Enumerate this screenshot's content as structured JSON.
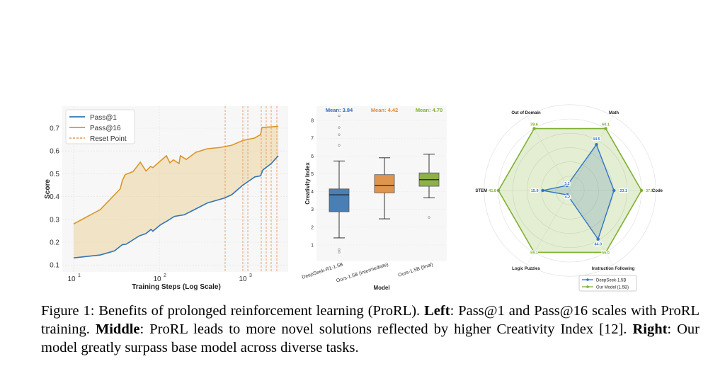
{
  "chart_data": [
    {
      "type": "line",
      "xlabel": "Training Steps (Log Scale)",
      "ylabel": "Score",
      "xscale": "log",
      "xlim": [
        8,
        2600
      ],
      "ylim": [
        0.09,
        0.77
      ],
      "xticks": [
        {
          "value": 10,
          "label": "10",
          "exp": "1"
        },
        {
          "value": 100,
          "label": "10",
          "exp": "2"
        },
        {
          "value": 1000,
          "label": "10",
          "exp": "3"
        }
      ],
      "yticks": [
        0.1,
        0.2,
        0.3,
        0.4,
        0.5,
        0.6,
        0.7
      ],
      "grid": true,
      "legend": "top-left",
      "fill_between": true,
      "series": [
        {
          "name": "Pass@1",
          "color": "#3274b5",
          "x": [
            10,
            20.5,
            30,
            37,
            41,
            58,
            70,
            80,
            84,
            103,
            125,
            150,
            195,
            267,
            364,
            570,
            700,
            944,
            1300,
            1520,
            1620,
            2030,
            2450
          ],
          "y": [
            0.131,
            0.144,
            0.162,
            0.189,
            0.191,
            0.227,
            0.238,
            0.256,
            0.248,
            0.276,
            0.294,
            0.313,
            0.32,
            0.346,
            0.372,
            0.393,
            0.408,
            0.45,
            0.486,
            0.491,
            0.517,
            0.545,
            0.579
          ]
        },
        {
          "name": "Pass@16",
          "color": "#d9962b",
          "x": [
            10,
            20.5,
            35,
            37,
            40,
            49.5,
            60,
            70,
            79,
            84,
            121,
            133,
            146,
            170,
            176,
            206,
            267,
            364,
            505,
            700,
            944,
            1300,
            1520,
            1580,
            2450
          ],
          "y": [
            0.28,
            0.343,
            0.434,
            0.47,
            0.496,
            0.51,
            0.551,
            0.512,
            0.532,
            0.527,
            0.579,
            0.548,
            0.561,
            0.545,
            0.579,
            0.563,
            0.594,
            0.61,
            0.615,
            0.625,
            0.646,
            0.657,
            0.672,
            0.703,
            0.708
          ]
        }
      ],
      "reset_points": {
        "name": "Reset Point",
        "color": "#e8965a",
        "x": [
          587,
          944,
          1080,
          1549,
          1770,
          2023,
          2355
        ]
      }
    },
    {
      "type": "box",
      "xlabel": "Model",
      "ylabel": "Creativity Index",
      "ylim": [
        0.2,
        8.6
      ],
      "yticks": [
        1,
        2,
        3,
        4,
        5,
        6,
        7,
        8
      ],
      "grid": true,
      "categories": [
        "DeepSeek-R1-1.5B",
        "Ours-1.5B (intermediate)",
        "Ours-1.5B (final)"
      ],
      "boxes": [
        {
          "q1": 2.87,
          "median": 3.82,
          "q3": 4.15,
          "whisker_low": 1.4,
          "whisker_high": 5.72,
          "outliers": [
            0.6,
            0.75,
            6.6,
            7.2,
            7.6,
            8.25
          ],
          "mean_label": "Mean: 3.84",
          "color": "#4a7fb5",
          "label_color": "#2f6fb3"
        },
        {
          "q1": 3.93,
          "median": 4.35,
          "q3": 4.95,
          "whisker_low": 2.47,
          "whisker_high": 5.9,
          "outliers": [],
          "mean_label": "Mean: 4.42",
          "color": "#e0954f",
          "label_color": "#e08a3c"
        },
        {
          "q1": 4.3,
          "median": 4.67,
          "q3": 5.05,
          "whisker_low": 3.65,
          "whisker_high": 6.1,
          "outliers": [
            2.55
          ],
          "mean_label": "Mean: 4.70",
          "color": "#8db048",
          "label_color": "#7fb032"
        }
      ]
    },
    {
      "type": "radar",
      "axes": [
        "Math",
        "Code",
        "Instruction Following",
        "Logic Puzzles",
        "STEM",
        "Out of Domain"
      ],
      "legend": "bottom-right",
      "series": [
        {
          "name": "DeepSeek-1.5B",
          "color": "#3274c8",
          "values": [
            44.5,
            23.1,
            44.0,
            4.2,
            15.9,
            3.2
          ],
          "labels": [
            "44.5",
            "23.1",
            "44.0",
            "4.2",
            "15.9",
            "3.2"
          ]
        },
        {
          "name": "Our Model (1.5B)",
          "color": "#7fb032",
          "values": [
            60.1,
            37.5,
            56.0,
            59.1,
            41.8,
            39.6
          ],
          "labels": [
            "60.1",
            "37.5",
            "56.0",
            "59.1",
            "41.8",
            "39.6"
          ]
        }
      ]
    }
  ],
  "caption": {
    "figure_label": "Figure 1:",
    "intro": " Benefits of prolonged reinforcement learning (ProRL). ",
    "left_label": "Left",
    "left_text": ": Pass@1 and Pass@16 scales with ProRL training. ",
    "middle_label": "Middle",
    "middle_text": ": ProRL leads to more novel solutions reflected by higher Creativity Index [12]. ",
    "right_label": "Right",
    "right_text": ": Our model greatly surpass base model across diverse tasks."
  }
}
